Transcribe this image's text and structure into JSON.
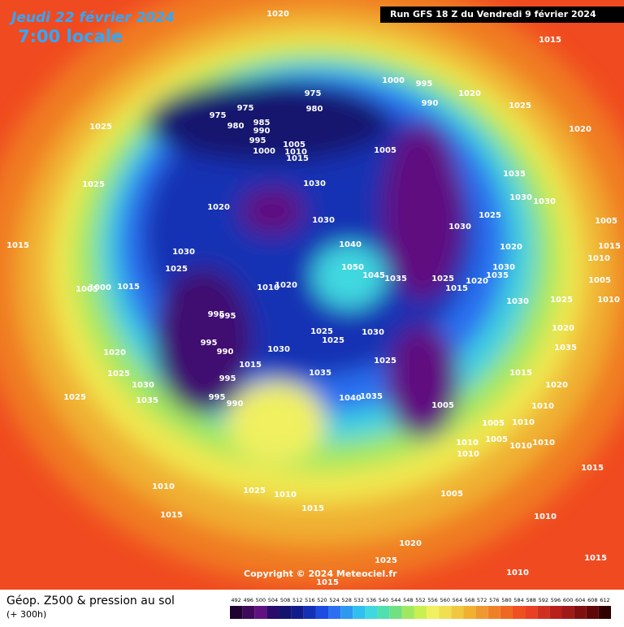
{
  "header": {
    "date": "Jeudi 22 février 2024",
    "time": "7:00 locale",
    "run": "Run GFS 18 Z du Vendredi 9 février 2024"
  },
  "footer": {
    "title": "Géop. Z500 & pression au sol",
    "subtitle": "(+ 300h)",
    "copyright": "Copyright © 2024 Meteociel.fr"
  },
  "colorbar": {
    "values": [
      492,
      496,
      500,
      504,
      508,
      512,
      516,
      520,
      524,
      528,
      532,
      536,
      540,
      544,
      548,
      552,
      556,
      560,
      564,
      568,
      572,
      576,
      580,
      584,
      588,
      592,
      596,
      600,
      604,
      608,
      612
    ],
    "colors": [
      "#200030",
      "#400858",
      "#601080",
      "#2a0a6a",
      "#14146e",
      "#101c8c",
      "#1430b4",
      "#1c4ce0",
      "#2a70f0",
      "#2c98f0",
      "#30c0f0",
      "#40d8e0",
      "#50e0b0",
      "#70e080",
      "#a0e860",
      "#c8f050",
      "#f0f060",
      "#f0e050",
      "#f0c840",
      "#f0b030",
      "#f09830",
      "#f08028",
      "#f06820",
      "#f05020",
      "#e84020",
      "#d03020",
      "#b82018",
      "#a01818",
      "#801010",
      "#600808",
      "#300000"
    ]
  },
  "isobar_labels": [
    "1020",
    "1015",
    "1025",
    "1025",
    "1015",
    "975",
    "975",
    "975",
    "980",
    "980",
    "985",
    "990",
    "995",
    "1000",
    "1005",
    "1010",
    "1015",
    "1000",
    "995",
    "990",
    "1020",
    "1025",
    "1020",
    "1005",
    "1035",
    "1030",
    "1030",
    "1025",
    "1005",
    "1015",
    "1010",
    "1030",
    "1030",
    "1020",
    "1030",
    "1025",
    "1040",
    "1050",
    "1045",
    "1035",
    "1030",
    "1020",
    "1030",
    "1035",
    "1025",
    "1015",
    "1020",
    "1005",
    "1030",
    "1025",
    "1010",
    "1010",
    "1020",
    "1015",
    "1005",
    "1000",
    "995",
    "995",
    "995",
    "990",
    "1030",
    "1025",
    "1025",
    "1030",
    "1020",
    "1035",
    "1020",
    "1025",
    "1030",
    "1035",
    "1025",
    "1035",
    "1025",
    "1015",
    "1020",
    "995",
    "1015",
    "995",
    "990",
    "1040",
    "1035",
    "1005",
    "1010",
    "1010",
    "1005",
    "1010",
    "1005",
    "1010",
    "1010",
    "1010",
    "1010",
    "1025",
    "1010",
    "1005",
    "1015",
    "1015",
    "1015",
    "1010",
    "1020",
    "1025",
    "1015",
    "1010",
    "1015"
  ]
}
